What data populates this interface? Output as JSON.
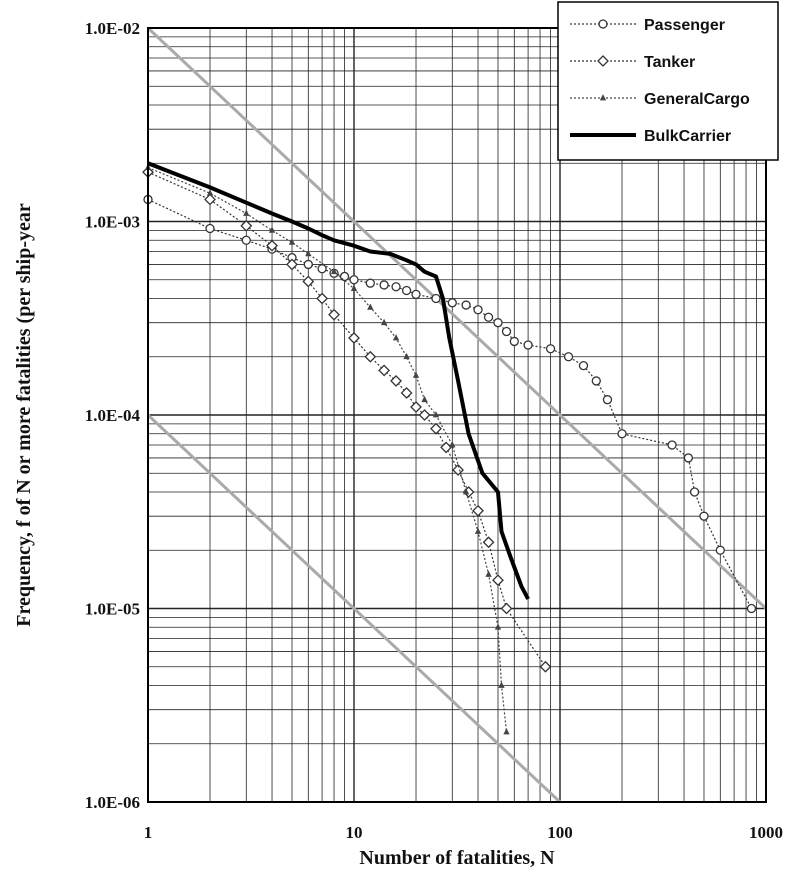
{
  "chart_data": {
    "type": "line",
    "xlabel": "Number of fatalities, N",
    "ylabel": "Frequency, f  of N or more fatalities (per ship-year",
    "x_scale": "log",
    "y_scale": "log",
    "xlim": [
      1,
      1000
    ],
    "ylim": [
      1e-06,
      0.01
    ],
    "x_ticks": [
      {
        "value": 1,
        "label": "1"
      },
      {
        "value": 10,
        "label": "10"
      },
      {
        "value": 100,
        "label": "100"
      },
      {
        "value": 1000,
        "label": "1000"
      }
    ],
    "y_ticks": [
      {
        "value": 1e-06,
        "label": "1.0E-06"
      },
      {
        "value": 1e-05,
        "label": "1.0E-05"
      },
      {
        "value": 0.0001,
        "label": "1.0E-04"
      },
      {
        "value": 0.001,
        "label": "1.0E-03"
      },
      {
        "value": 0.01,
        "label": "1.0E-02"
      }
    ],
    "grid": true,
    "legend_position": "top-right",
    "criteria_lines": [
      {
        "points": [
          [
            1,
            0.01
          ],
          [
            1000,
            1e-05
          ]
        ],
        "color": "#aaaaaa"
      },
      {
        "points": [
          [
            1,
            0.0001
          ],
          [
            1000,
            1e-07
          ]
        ],
        "color": "#aaaaaa"
      }
    ],
    "series": [
      {
        "name": "Passenger",
        "color": "#333333",
        "marker": "circle",
        "line": "dotted",
        "points": [
          [
            1,
            0.0013
          ],
          [
            2,
            0.00092
          ],
          [
            3,
            0.0008
          ],
          [
            4,
            0.00072
          ],
          [
            5,
            0.00065
          ],
          [
            6,
            0.0006
          ],
          [
            7,
            0.00057
          ],
          [
            8,
            0.00054
          ],
          [
            9,
            0.00052
          ],
          [
            10,
            0.0005
          ],
          [
            12,
            0.00048
          ],
          [
            14,
            0.00047
          ],
          [
            16,
            0.00046
          ],
          [
            18,
            0.00044
          ],
          [
            20,
            0.00042
          ],
          [
            25,
            0.0004
          ],
          [
            30,
            0.00038
          ],
          [
            35,
            0.00037
          ],
          [
            40,
            0.00035
          ],
          [
            45,
            0.00032
          ],
          [
            50,
            0.0003
          ],
          [
            55,
            0.00027
          ],
          [
            60,
            0.00024
          ],
          [
            70,
            0.00023
          ],
          [
            90,
            0.00022
          ],
          [
            110,
            0.0002
          ],
          [
            130,
            0.00018
          ],
          [
            150,
            0.00015
          ],
          [
            170,
            0.00012
          ],
          [
            200,
            8e-05
          ],
          [
            350,
            7e-05
          ],
          [
            420,
            6e-05
          ],
          [
            450,
            4e-05
          ],
          [
            500,
            3e-05
          ],
          [
            600,
            2e-05
          ],
          [
            850,
            1e-05
          ]
        ]
      },
      {
        "name": "Tanker",
        "color": "#333333",
        "marker": "diamond",
        "line": "dotted",
        "points": [
          [
            1,
            0.0018
          ],
          [
            2,
            0.0013
          ],
          [
            3,
            0.00095
          ],
          [
            4,
            0.00075
          ],
          [
            5,
            0.0006
          ],
          [
            6,
            0.00049
          ],
          [
            7,
            0.0004
          ],
          [
            8,
            0.00033
          ],
          [
            10,
            0.00025
          ],
          [
            12,
            0.0002
          ],
          [
            14,
            0.00017
          ],
          [
            16,
            0.00015
          ],
          [
            18,
            0.00013
          ],
          [
            20,
            0.00011
          ],
          [
            22,
            0.0001
          ],
          [
            25,
            8.5e-05
          ],
          [
            28,
            6.8e-05
          ],
          [
            32,
            5.2e-05
          ],
          [
            36,
            4e-05
          ],
          [
            40,
            3.2e-05
          ],
          [
            45,
            2.2e-05
          ],
          [
            50,
            1.4e-05
          ],
          [
            55,
            1e-05
          ],
          [
            85,
            5e-06
          ]
        ]
      },
      {
        "name": "GeneralCargo",
        "color": "#444444",
        "marker": "triangle",
        "line": "dotted",
        "points": [
          [
            1,
            0.0019
          ],
          [
            2,
            0.0014
          ],
          [
            3,
            0.0011
          ],
          [
            4,
            0.0009
          ],
          [
            5,
            0.00078
          ],
          [
            6,
            0.00068
          ],
          [
            8,
            0.00055
          ],
          [
            10,
            0.00045
          ],
          [
            12,
            0.00036
          ],
          [
            14,
            0.0003
          ],
          [
            16,
            0.00025
          ],
          [
            18,
            0.0002
          ],
          [
            20,
            0.00016
          ],
          [
            22,
            0.00012
          ],
          [
            25,
            0.0001
          ],
          [
            30,
            7e-05
          ],
          [
            35,
            4e-05
          ],
          [
            40,
            2.5e-05
          ],
          [
            45,
            1.5e-05
          ],
          [
            50,
            8e-06
          ],
          [
            52,
            4e-06
          ],
          [
            55,
            2.3e-06
          ]
        ]
      },
      {
        "name": "BulkCarrier",
        "color": "#000000",
        "marker": "none",
        "line": "solid",
        "points": [
          [
            1,
            0.002
          ],
          [
            2,
            0.0015
          ],
          [
            3,
            0.00125
          ],
          [
            4,
            0.0011
          ],
          [
            5,
            0.001
          ],
          [
            6,
            0.00092
          ],
          [
            7,
            0.00085
          ],
          [
            8,
            0.0008
          ],
          [
            10,
            0.00075
          ],
          [
            12,
            0.0007
          ],
          [
            15,
            0.00068
          ],
          [
            18,
            0.00063
          ],
          [
            20,
            0.0006
          ],
          [
            22,
            0.00055
          ],
          [
            25,
            0.00052
          ],
          [
            27,
            0.0004
          ],
          [
            29,
            0.00025
          ],
          [
            32,
            0.00015
          ],
          [
            36,
            8e-05
          ],
          [
            42,
            5e-05
          ],
          [
            50,
            4e-05
          ],
          [
            52,
            2.5e-05
          ],
          [
            58,
            1.8e-05
          ],
          [
            65,
            1.3e-05
          ],
          [
            70,
            1.12e-05
          ]
        ]
      }
    ]
  }
}
